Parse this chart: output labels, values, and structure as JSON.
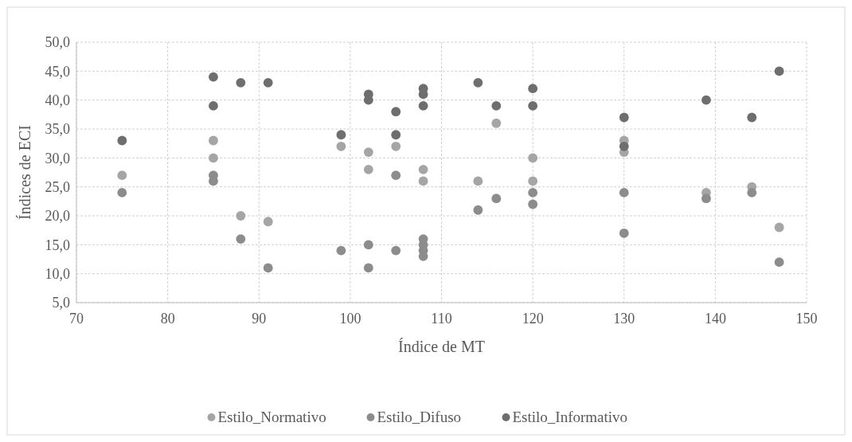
{
  "chart_data": {
    "type": "scatter",
    "xlabel": "Índice de MT",
    "ylabel": "Índices de ECI",
    "xlim": [
      70,
      150
    ],
    "xticks": [
      70,
      80,
      90,
      100,
      110,
      120,
      130,
      140,
      150
    ],
    "ylim": [
      5,
      50
    ],
    "yticks": [
      {
        "value": 5,
        "label": "5,0"
      },
      {
        "value": 10,
        "label": "10,0"
      },
      {
        "value": 15,
        "label": "15,0"
      },
      {
        "value": 20,
        "label": "20,0"
      },
      {
        "value": 25,
        "label": "25,0"
      },
      {
        "value": 30,
        "label": "30,0"
      },
      {
        "value": 35,
        "label": "35,0"
      },
      {
        "value": 40,
        "label": "40,0"
      },
      {
        "value": 45,
        "label": "45,0"
      },
      {
        "value": 50,
        "label": "50,0"
      }
    ],
    "grid": true,
    "legend": "bottom",
    "marker": "circle",
    "series": [
      {
        "name": "Estilo_Normativo",
        "color": "#a5a5a5",
        "x": [
          75,
          85,
          85,
          88,
          91,
          99,
          102,
          102,
          105,
          108,
          108,
          114,
          116,
          120,
          120,
          130,
          130,
          139,
          144,
          147
        ],
        "values": [
          27,
          33,
          30,
          20,
          19,
          32,
          31,
          28,
          32,
          28,
          26,
          26,
          36,
          30,
          26,
          33,
          31,
          24,
          25,
          18
        ]
      },
      {
        "name": "Estilo_Difuso",
        "color": "#8c8c8c",
        "x": [
          75,
          85,
          85,
          88,
          91,
          99,
          102,
          102,
          105,
          105,
          108,
          108,
          108,
          108,
          114,
          116,
          120,
          120,
          130,
          130,
          139,
          144,
          147
        ],
        "values": [
          24,
          27,
          26,
          16,
          11,
          14,
          15,
          11,
          27,
          14,
          16,
          15,
          14,
          13,
          21,
          23,
          24,
          22,
          24,
          17,
          23,
          24,
          12
        ]
      },
      {
        "name": "Estilo_Informativo",
        "color": "#6e6e6e",
        "x": [
          75,
          85,
          85,
          88,
          91,
          99,
          102,
          102,
          105,
          105,
          108,
          108,
          108,
          114,
          116,
          120,
          120,
          130,
          130,
          139,
          144,
          147
        ],
        "values": [
          33,
          44,
          39,
          43,
          43,
          34,
          41,
          40,
          38,
          34,
          42,
          41,
          39,
          43,
          39,
          42,
          39,
          37,
          32,
          40,
          37,
          45
        ]
      }
    ]
  }
}
